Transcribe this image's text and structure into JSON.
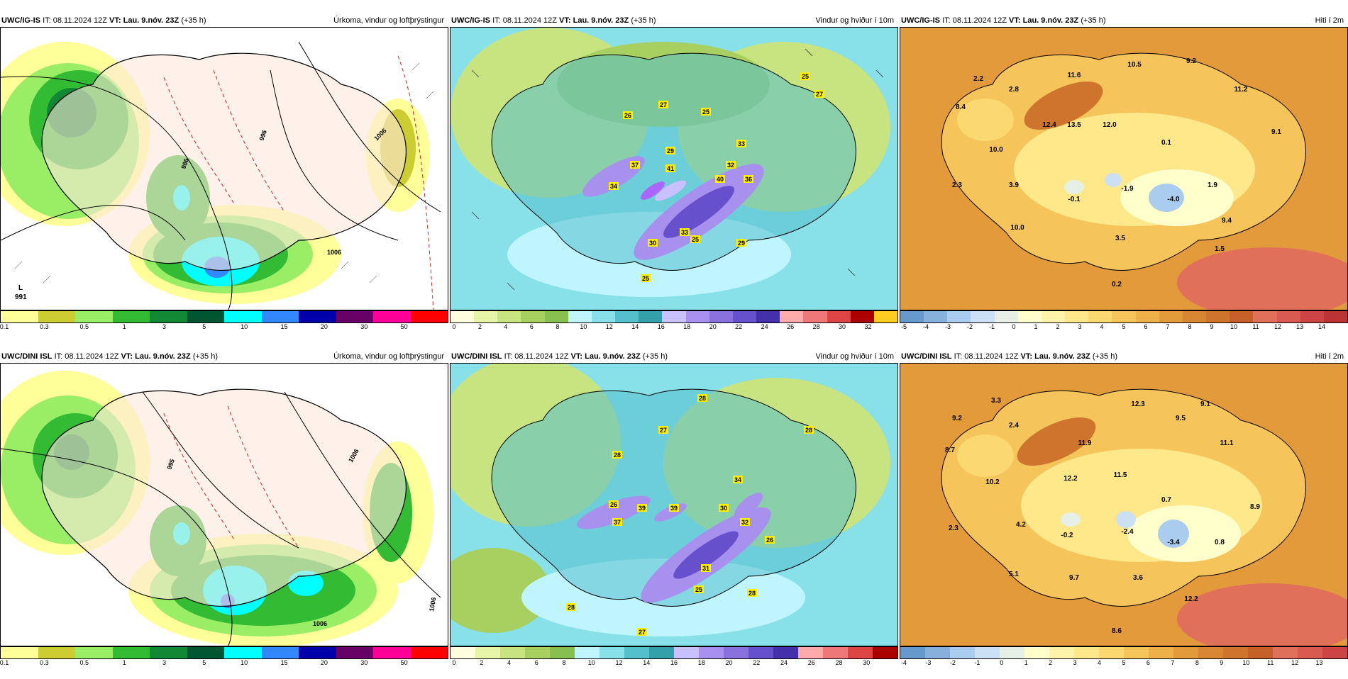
{
  "panels": {
    "p1": {
      "model": "UWC/IG-IS",
      "it": "IT: 08.11.2024 12Z",
      "vt": "VT: Lau. 9.nóv. 23Z",
      "lead": "(+35 h)",
      "title": "Úrkoma, vindur og loftþrýstingur",
      "colors": [
        "#ffff99",
        "#cccc33",
        "#99ee66",
        "#33bb33",
        "#118833",
        "#005533",
        "#00ffff",
        "#3388ff",
        "#0000aa",
        "#660066",
        "#ff0099",
        "#ff0000"
      ],
      "ticks": [
        "0.1",
        "0.3",
        "0.5",
        "1",
        "3",
        "5",
        "10",
        "15",
        "20",
        "30",
        "50"
      ],
      "low_label": "L",
      "low_value": "991",
      "isobars": [
        "986",
        "996",
        "1006",
        "1006"
      ]
    },
    "p2": {
      "model": "UWC/IG-IS",
      "it": "IT: 08.11.2024 12Z",
      "vt": "VT: Lau. 9.nóv. 23Z",
      "lead": "(+35 h)",
      "title": "Vindur og hviður í 10m",
      "colors": [
        "#ffffe0",
        "#e6f4a8",
        "#c8e480",
        "#a8d060",
        "#88c050",
        "#bff5ff",
        "#88e0e8",
        "#55c0cc",
        "#33a0aa",
        "#c8c0ff",
        "#a890ee",
        "#8870dd",
        "#6650cc",
        "#4430aa",
        "#ffaaaa",
        "#ee7777",
        "#dd4444",
        "#aa0000",
        "#ffcc22"
      ],
      "ticks": [
        "0",
        "2",
        "4",
        "6",
        "8",
        "10",
        "12",
        "14",
        "16",
        "18",
        "20",
        "22",
        "24",
        "26",
        "28",
        "30",
        "32"
      ],
      "gusts": [
        "25",
        "27",
        "27",
        "25",
        "26",
        "33",
        "29",
        "37",
        "41",
        "32",
        "40",
        "36",
        "34",
        "33",
        "30",
        "25",
        "29",
        "25"
      ]
    },
    "p3": {
      "model": "UWC/IG-IS",
      "it": "IT: 08.11.2024 12Z",
      "vt": "VT: Lau. 9.nóv. 23Z",
      "lead": "(+35 h)",
      "title": "Hiti í 2m",
      "colors": [
        "#6699cc",
        "#88b0dd",
        "#aaccee",
        "#cce0f5",
        "#e6f0e6",
        "#ffffcc",
        "#fff3aa",
        "#ffe88a",
        "#fbd870",
        "#f5c45a",
        "#eeb048",
        "#e29a3a",
        "#d88632",
        "#cf742c",
        "#c66028",
        "#e0705a",
        "#d85a50",
        "#cc4444",
        "#bb3333"
      ],
      "ticks": [
        "-5",
        "-4",
        "-3",
        "-2",
        "-1",
        "0",
        "1",
        "2",
        "3",
        "4",
        "5",
        "6",
        "7",
        "8",
        "9",
        "10",
        "11",
        "12",
        "13",
        "14"
      ],
      "temps": [
        "2.2",
        "2.8",
        "11.6",
        "10.5",
        "9.2",
        "11.2",
        "8.4",
        "12.4",
        "13.5",
        "12.0",
        "9.1",
        "10.0",
        "0.1",
        "2.3",
        "3.9",
        "-0.1",
        "-1.9",
        "-4.0",
        "1.9",
        "10.0",
        "3.5",
        "9.4",
        "1.5",
        "0.2"
      ]
    },
    "p4": {
      "model": "UWC/DINI ISL",
      "it": "IT: 08.11.2024 12Z",
      "vt": "VT: Lau. 9.nóv. 23Z",
      "lead": "(+35 h)",
      "title": "Úrkoma, vindur og loftþrýstingur",
      "colors": [
        "#ffff99",
        "#cccc33",
        "#99ee66",
        "#33bb33",
        "#118833",
        "#005533",
        "#00ffff",
        "#3388ff",
        "#0000aa",
        "#660066",
        "#ff0099",
        "#ff0000"
      ],
      "ticks": [
        "0.1",
        "0.3",
        "0.5",
        "1",
        "3",
        "5",
        "10",
        "15",
        "20",
        "30",
        "50"
      ],
      "isobars": [
        "995",
        "1006",
        "1006",
        "1006"
      ]
    },
    "p5": {
      "model": "UWC/DINI ISL",
      "it": "IT: 08.11.2024 12Z",
      "vt": "VT: Lau. 9.nóv. 23Z",
      "lead": "(+35 h)",
      "title": "Vindur og hviður í 10m",
      "colors": [
        "#ffffe0",
        "#e6f4a8",
        "#c8e480",
        "#a8d060",
        "#88c050",
        "#bff5ff",
        "#88e0e8",
        "#55c0cc",
        "#33a0aa",
        "#c8c0ff",
        "#a890ee",
        "#8870dd",
        "#6650cc",
        "#4430aa",
        "#ffaaaa",
        "#ee7777",
        "#dd4444",
        "#aa0000"
      ],
      "ticks": [
        "0",
        "2",
        "4",
        "6",
        "8",
        "10",
        "12",
        "14",
        "16",
        "18",
        "20",
        "22",
        "24",
        "26",
        "28",
        "30"
      ],
      "gusts": [
        "28",
        "27",
        "28",
        "28",
        "34",
        "26",
        "39",
        "39",
        "37",
        "30",
        "32",
        "26",
        "31",
        "25",
        "28",
        "28",
        "27"
      ]
    },
    "p6": {
      "model": "UWC/DINI ISL",
      "it": "IT: 08.11.2024 12Z",
      "vt": "VT: Lau. 9.nóv. 23Z",
      "lead": "(+35 h)",
      "title": "Hiti í 2m",
      "colors": [
        "#6699cc",
        "#88b0dd",
        "#aaccee",
        "#cce0f5",
        "#e6f0e6",
        "#ffffcc",
        "#fff3aa",
        "#ffe88a",
        "#fbd870",
        "#f5c45a",
        "#eeb048",
        "#e29a3a",
        "#d88632",
        "#cf742c",
        "#c66028",
        "#e0705a",
        "#d85a50",
        "#cc4444"
      ],
      "ticks": [
        "-4",
        "-3",
        "-2",
        "-1",
        "0",
        "1",
        "2",
        "3",
        "4",
        "5",
        "6",
        "7",
        "8",
        "9",
        "10",
        "11",
        "12",
        "13"
      ],
      "temps": [
        "3.3",
        "12.3",
        "9.1",
        "9.2",
        "2.4",
        "9.5",
        "8.7",
        "11.9",
        "11.1",
        "10.2",
        "12.2",
        "11.5",
        "0.7",
        "8.9",
        "2.3",
        "4.2",
        "-0.2",
        "-2.4",
        "-3.4",
        "0.8",
        "5.1",
        "9.7",
        "3.6",
        "12.2",
        "8.6"
      ]
    }
  }
}
